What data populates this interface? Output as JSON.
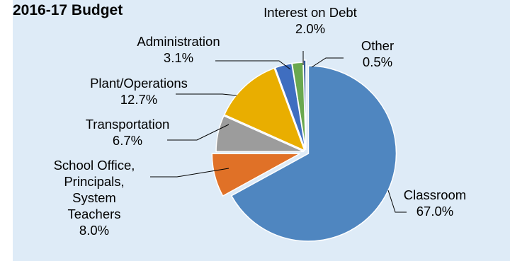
{
  "chart_data": {
    "type": "pie",
    "title": "2016-17 Budget",
    "slices": [
      {
        "label": "Classroom",
        "value": 67.0,
        "display": "67.0%",
        "color": "#4f86c0"
      },
      {
        "label": "School Office, Principals, System Teachers",
        "label_lines": [
          "School Office,",
          "Principals,",
          "System",
          "Teachers"
        ],
        "value": 8.0,
        "display": "8.0%",
        "color": "#e07127"
      },
      {
        "label": "Transportation",
        "value": 6.7,
        "display": "6.7%",
        "color": "#9c9c9c"
      },
      {
        "label": "Plant/Operations",
        "value": 12.7,
        "display": "12.7%",
        "color": "#e9ae00"
      },
      {
        "label": "Administration",
        "value": 3.1,
        "display": "3.1%",
        "color": "#3f6ec0"
      },
      {
        "label": "Interest on Debt",
        "value": 2.0,
        "display": "2.0%",
        "color": "#6aa84f"
      },
      {
        "label": "Other",
        "value": 0.5,
        "display": "0.5%",
        "color": "#2e5597"
      }
    ]
  }
}
